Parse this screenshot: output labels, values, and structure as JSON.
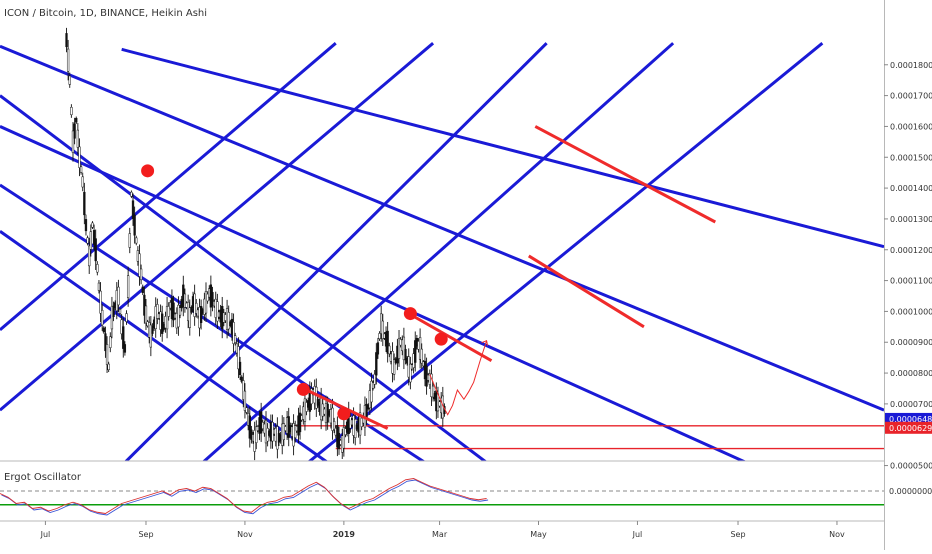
{
  "header": {
    "title": "ICON / Bitcoin, 1D, BINANCE, Heikin Ashi"
  },
  "oscillator": {
    "title": "Ergot Oscillator",
    "zero_label": "0.0000000"
  },
  "chart_data": {
    "type": "candlestick",
    "title": "ICON / Bitcoin, 1D, BINANCE, Heikin Ashi",
    "y_scale": "linear",
    "ylim": [
      4.6e-06,
      0.00019
    ],
    "y_ticks": [
      "0.0001800",
      "0.0001700",
      "0.0001600",
      "0.0001500",
      "0.0001400",
      "0.0001300",
      "0.0001200",
      "0.0001100",
      "0.0001000",
      "0.0000900",
      "0.0000800",
      "0.0000700",
      "0.0000500"
    ],
    "y_tick_values": [
      0.00018,
      0.00017,
      0.00016,
      0.00015,
      0.00014,
      0.00013,
      0.00012,
      0.00011,
      0.0001,
      9e-05,
      8e-05,
      7e-05,
      5e-05
    ],
    "x_ticks": [
      {
        "label": "Jul",
        "day": -7,
        "bold": false
      },
      {
        "label": "Sep",
        "day": 55,
        "bold": false
      },
      {
        "label": "Nov",
        "day": 116,
        "bold": false
      },
      {
        "label": "2019",
        "day": 177,
        "bold": true
      },
      {
        "label": "Mar",
        "day": 236,
        "bold": false
      },
      {
        "label": "May",
        "day": 297,
        "bold": false
      },
      {
        "label": "Jul",
        "day": 358,
        "bold": false
      },
      {
        "label": "Sep",
        "day": 420,
        "bold": false
      },
      {
        "label": "Nov",
        "day": 481,
        "bold": false
      }
    ],
    "x_range_days": [
      -35,
      510
    ],
    "price_path": [
      [
        6,
        0.000188
      ],
      [
        8,
        0.000175
      ],
      [
        10,
        0.000155
      ],
      [
        12,
        0.000162
      ],
      [
        14,
        0.00015
      ],
      [
        16,
        0.000142
      ],
      [
        18,
        0.000128
      ],
      [
        20,
        0.000118
      ],
      [
        22,
        0.000128
      ],
      [
        24,
        0.00012
      ],
      [
        26,
        0.000108
      ],
      [
        28,
        9.8e-05
      ],
      [
        30,
        9e-05
      ],
      [
        32,
        8.2e-05
      ],
      [
        34,
        9.8e-05
      ],
      [
        36,
        0.000102
      ],
      [
        38,
        0.000105
      ],
      [
        40,
        9.5e-05
      ],
      [
        42,
        8.8e-05
      ],
      [
        44,
        0.000108
      ],
      [
        46,
        0.000138
      ],
      [
        48,
        0.000128
      ],
      [
        50,
        0.000118
      ],
      [
        52,
        0.000112
      ],
      [
        54,
        0.000102
      ],
      [
        56,
        9.6e-05
      ],
      [
        58,
        9.2e-05
      ],
      [
        60,
        9.6e-05
      ],
      [
        62,
        0.0001
      ],
      [
        64,
        9.7e-05
      ],
      [
        66,
        9.5e-05
      ],
      [
        68,
        9.8e-05
      ],
      [
        70,
        0.000102
      ],
      [
        72,
        0.0001
      ],
      [
        74,
        9.7e-05
      ],
      [
        76,
        0.0001
      ],
      [
        78,
        0.000105
      ],
      [
        80,
        0.000102
      ],
      [
        82,
        9.8e-05
      ],
      [
        84,
        0.000103
      ],
      [
        86,
        0.000101
      ],
      [
        88,
        9.8e-05
      ],
      [
        90,
        0.0001
      ],
      [
        92,
        0.000103
      ],
      [
        94,
        0.000106
      ],
      [
        96,
        0.000104
      ],
      [
        98,
        0.000101
      ],
      [
        100,
        9.9e-05
      ],
      [
        102,
        9.8e-05
      ],
      [
        104,
        9.8e-05
      ],
      [
        106,
        9.7e-05
      ],
      [
        108,
        9.5e-05
      ],
      [
        110,
        9.1e-05
      ],
      [
        112,
        8.5e-05
      ],
      [
        114,
        7.8e-05
      ],
      [
        116,
        7.1e-05
      ],
      [
        118,
        6.5e-05
      ],
      [
        120,
        6e-05
      ],
      [
        122,
        5.8e-05
      ],
      [
        124,
        6.2e-05
      ],
      [
        126,
        6.4e-05
      ],
      [
        128,
        6.2e-05
      ],
      [
        130,
        6e-05
      ],
      [
        132,
        6.1e-05
      ],
      [
        134,
        6.1e-05
      ],
      [
        136,
        5.9e-05
      ],
      [
        138,
        5.9e-05
      ],
      [
        140,
        6.1e-05
      ],
      [
        142,
        6.3e-05
      ],
      [
        144,
        6.2e-05
      ],
      [
        146,
        6e-05
      ],
      [
        148,
        6.2e-05
      ],
      [
        150,
        6.4e-05
      ],
      [
        152,
        6.7e-05
      ],
      [
        154,
        6.9e-05
      ],
      [
        156,
        7.1e-05
      ],
      [
        158,
        7.4e-05
      ],
      [
        160,
        7.2e-05
      ],
      [
        162,
        6.9e-05
      ],
      [
        164,
        6.8e-05
      ],
      [
        166,
        6.7e-05
      ],
      [
        168,
        6.7e-05
      ],
      [
        170,
        6.5e-05
      ],
      [
        172,
        6.1e-05
      ],
      [
        174,
        5.8e-05
      ],
      [
        176,
        5.7e-05
      ],
      [
        178,
        6.1e-05
      ],
      [
        180,
        6.4e-05
      ],
      [
        182,
        6.4e-05
      ],
      [
        184,
        6.2e-05
      ],
      [
        186,
        6.3e-05
      ],
      [
        188,
        6.4e-05
      ],
      [
        190,
        6.6e-05
      ],
      [
        192,
        6.9e-05
      ],
      [
        194,
        7.4e-05
      ],
      [
        196,
        7.8e-05
      ],
      [
        198,
        8.8e-05
      ],
      [
        200,
        9.6e-05
      ],
      [
        202,
        9.2e-05
      ],
      [
        204,
        9e-05
      ],
      [
        206,
        8.5e-05
      ],
      [
        208,
        8.2e-05
      ],
      [
        210,
        8.6e-05
      ],
      [
        212,
        9e-05
      ],
      [
        214,
        8.8e-05
      ],
      [
        216,
        8.4e-05
      ],
      [
        218,
        8e-05
      ],
      [
        220,
        8.4e-05
      ],
      [
        222,
        9e-05
      ],
      [
        224,
        8.8e-05
      ],
      [
        226,
        8.3e-05
      ],
      [
        228,
        7.9e-05
      ],
      [
        230,
        7.8e-05
      ],
      [
        232,
        7.4e-05
      ],
      [
        234,
        7.1e-05
      ],
      [
        236,
        7e-05
      ],
      [
        238,
        6.9e-05
      ],
      [
        240,
        6.7e-05
      ]
    ],
    "pitchfork_lines": [
      [
        [
          -35,
          0.00017
        ],
        [
          265,
          5.1e-05
        ]
      ],
      [
        [
          -35,
          0.000141
        ],
        [
          227,
          5.1e-05
        ]
      ],
      [
        [
          -35,
          0.000126
        ],
        [
          167,
          5.1e-05
        ]
      ],
      [
        [
          -35,
          0.00016
        ],
        [
          425,
          5.1e-05
        ]
      ],
      [
        [
          -35,
          0.000186
        ],
        [
          510,
          6.8e-05
        ]
      ],
      [
        [
          40,
          0.000185
        ],
        [
          510,
          0.000121
        ]
      ],
      [
        [
          -35,
          9.4e-05
        ],
        [
          172,
          0.000187
        ]
      ],
      [
        [
          -35,
          6.8e-05
        ],
        [
          232,
          0.000187
        ]
      ],
      [
        [
          42,
          5.1e-05
        ],
        [
          302,
          0.000187
        ]
      ],
      [
        [
          90,
          5.1e-05
        ],
        [
          380,
          0.000187
        ]
      ],
      [
        [
          155,
          5.1e-05
        ],
        [
          472,
          0.000187
        ]
      ]
    ],
    "red_segments": [
      [
        [
          295,
          0.00016
        ],
        [
          406,
          0.000129
        ]
      ],
      [
        [
          291,
          0.000118
        ],
        [
          362,
          9.5e-05
        ]
      ],
      [
        [
          218,
          9.9e-05
        ],
        [
          268,
          8.4e-05
        ]
      ],
      [
        [
          152,
          7.5e-05
        ],
        [
          204,
          6.2e-05
        ]
      ]
    ],
    "red_dots": [
      [
        56,
        0.0001456
      ],
      [
        152,
        7.47e-05
      ],
      [
        177,
        6.68e-05
      ],
      [
        218,
        9.93e-05
      ],
      [
        237,
        9.1e-05
      ]
    ],
    "horizontal_levels": [
      {
        "from_day": 147,
        "value": 6.29e-05,
        "label": "0.0000629"
      },
      {
        "from_day": 172,
        "value": 5.55e-05,
        "label": ""
      }
    ],
    "price_badges": [
      {
        "value": 6.48e-05,
        "label": "0.0000648"
      },
      {
        "value": 6.29e-05,
        "label": "0.0000629"
      }
    ],
    "projection_path": [
      [
        230,
        7.95e-05
      ],
      [
        234,
        7.45e-05
      ],
      [
        238,
        6.95e-05
      ],
      [
        241,
        6.65e-05
      ],
      [
        244,
        6.95e-05
      ],
      [
        247,
        7.45e-05
      ],
      [
        251,
        7.15e-05
      ],
      [
        254,
        7.4e-05
      ],
      [
        257,
        7.7e-05
      ],
      [
        261,
        8.4e-05
      ],
      [
        265,
        9.05e-05
      ]
    ],
    "oscillator": {
      "title": "Ergot Oscillator",
      "ylim": [
        -1.0,
        1.0
      ],
      "zero_level": 0.0,
      "zero_label": "0.0000000",
      "signal_level": -0.55,
      "line": [
        [
          -35,
          -0.1
        ],
        [
          -30,
          -0.25
        ],
        [
          -25,
          -0.5
        ],
        [
          -20,
          -0.45
        ],
        [
          -15,
          -0.7
        ],
        [
          -10,
          -0.65
        ],
        [
          -5,
          -0.8
        ],
        [
          0,
          -0.7
        ],
        [
          5,
          -0.55
        ],
        [
          10,
          -0.45
        ],
        [
          15,
          -0.55
        ],
        [
          20,
          -0.75
        ],
        [
          25,
          -0.85
        ],
        [
          30,
          -0.9
        ],
        [
          35,
          -0.7
        ],
        [
          40,
          -0.5
        ],
        [
          45,
          -0.4
        ],
        [
          50,
          -0.3
        ],
        [
          55,
          -0.2
        ],
        [
          60,
          -0.1
        ],
        [
          65,
          0.0
        ],
        [
          70,
          -0.15
        ],
        [
          75,
          0.05
        ],
        [
          80,
          0.1
        ],
        [
          85,
          0.0
        ],
        [
          90,
          0.15
        ],
        [
          95,
          0.1
        ],
        [
          100,
          -0.1
        ],
        [
          105,
          -0.3
        ],
        [
          110,
          -0.6
        ],
        [
          115,
          -0.8
        ],
        [
          120,
          -0.85
        ],
        [
          125,
          -0.6
        ],
        [
          130,
          -0.45
        ],
        [
          135,
          -0.4
        ],
        [
          140,
          -0.25
        ],
        [
          145,
          -0.2
        ],
        [
          150,
          0.0
        ],
        [
          155,
          0.2
        ],
        [
          160,
          0.35
        ],
        [
          165,
          0.15
        ],
        [
          170,
          -0.2
        ],
        [
          175,
          -0.5
        ],
        [
          180,
          -0.7
        ],
        [
          185,
          -0.55
        ],
        [
          190,
          -0.4
        ],
        [
          195,
          -0.3
        ],
        [
          200,
          -0.1
        ],
        [
          205,
          0.1
        ],
        [
          210,
          0.25
        ],
        [
          215,
          0.45
        ],
        [
          220,
          0.5
        ],
        [
          225,
          0.35
        ],
        [
          230,
          0.2
        ],
        [
          235,
          0.1
        ],
        [
          240,
          0.0
        ],
        [
          245,
          -0.1
        ],
        [
          250,
          -0.2
        ],
        [
          255,
          -0.3
        ],
        [
          260,
          -0.35
        ],
        [
          265,
          -0.3
        ]
      ]
    }
  }
}
